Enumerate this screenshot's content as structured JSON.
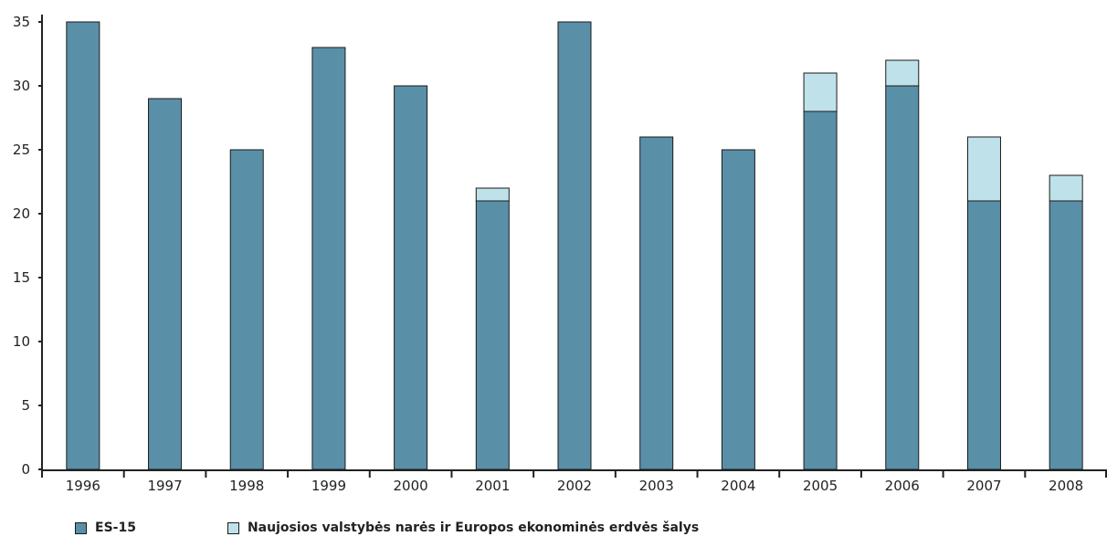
{
  "chart_data": {
    "type": "bar",
    "stacked": true,
    "title": "",
    "xlabel": "",
    "ylabel": "",
    "categories": [
      "1996",
      "1997",
      "1998",
      "1999",
      "2000",
      "2001",
      "2002",
      "2003",
      "2004",
      "2005",
      "2006",
      "2007",
      "2008"
    ],
    "series": [
      {
        "name": "ES-15",
        "color": "#5a8fa8",
        "values": [
          35,
          29,
          25,
          33,
          30,
          21,
          35,
          26,
          25,
          28,
          30,
          21,
          21
        ]
      },
      {
        "name": "Naujosios valstybės narės ir Europos ekonominės erdvės šalys",
        "color": "#bfe2ea",
        "values": [
          0,
          0,
          0,
          0,
          0,
          1,
          0,
          0,
          0,
          3,
          2,
          5,
          2
        ]
      }
    ],
    "ylim": [
      0,
      35
    ],
    "yticks": [
      0,
      5,
      10,
      15,
      20,
      25,
      30,
      35
    ],
    "grid": false,
    "legend_position": "bottom-left"
  }
}
